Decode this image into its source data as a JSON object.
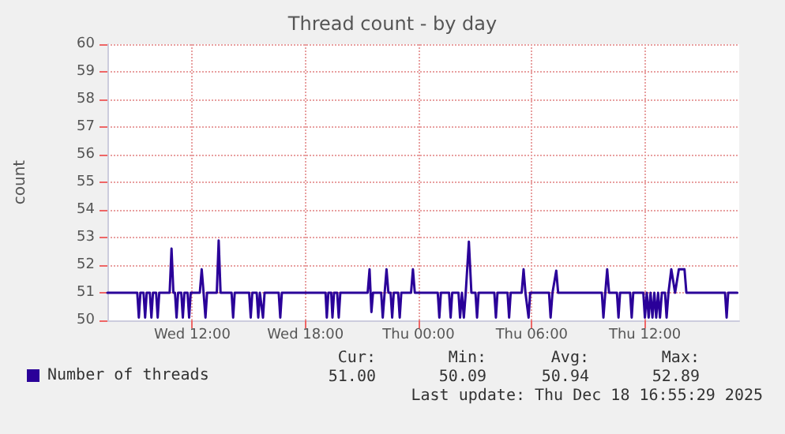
{
  "chart_data": {
    "type": "line",
    "title": "Thread count - by day",
    "ylabel": "count",
    "xlim": [
      "2025-12-17T07:30",
      "2025-12-18T17:00"
    ],
    "xticks": [
      {
        "value": "2025-12-17T12:00",
        "label": "Wed 12:00"
      },
      {
        "value": "2025-12-17T18:00",
        "label": "Wed 18:00"
      },
      {
        "value": "2025-12-18T00:00",
        "label": "Thu 00:00"
      },
      {
        "value": "2025-12-18T06:00",
        "label": "Thu 06:00"
      },
      {
        "value": "2025-12-18T12:00",
        "label": "Thu 12:00"
      }
    ],
    "ylim": [
      50,
      60
    ],
    "yticks": [
      50,
      51,
      52,
      53,
      54,
      55,
      56,
      57,
      58,
      59,
      60
    ],
    "grid": true,
    "legend": "bottom left",
    "marker": "none",
    "line_style": "solid",
    "annotations": [
      "Cur:",
      "Min:",
      "Avg:",
      "Max:",
      "51.00",
      "50.09",
      "50.94",
      "52.89",
      "Last update: Thu Dec 18 16:55:29 2025"
    ],
    "series": [
      {
        "name": "Number of threads",
        "color": "#2a0099",
        "x": [
          "2025-12-17T07:30",
          "2025-12-17T09:05",
          "2025-12-17T09:10",
          "2025-12-17T09:15",
          "2025-12-17T09:25",
          "2025-12-17T09:30",
          "2025-12-17T09:35",
          "2025-12-17T09:45",
          "2025-12-17T09:50",
          "2025-12-17T09:55",
          "2025-12-17T10:05",
          "2025-12-17T10:10",
          "2025-12-17T10:15",
          "2025-12-17T10:48",
          "2025-12-17T10:54",
          "2025-12-17T11:00",
          "2025-12-17T11:05",
          "2025-12-17T11:10",
          "2025-12-17T11:15",
          "2025-12-17T11:25",
          "2025-12-17T11:30",
          "2025-12-17T11:35",
          "2025-12-17T11:45",
          "2025-12-17T11:50",
          "2025-12-17T11:55",
          "2025-12-17T12:24",
          "2025-12-17T12:30",
          "2025-12-17T12:36",
          "2025-12-17T12:42",
          "2025-12-17T12:47",
          "2025-12-17T13:18",
          "2025-12-17T13:24",
          "2025-12-17T13:30",
          "2025-12-17T14:05",
          "2025-12-17T14:10",
          "2025-12-17T14:15",
          "2025-12-17T15:01",
          "2025-12-17T15:06",
          "2025-12-17T15:11",
          "2025-12-17T15:25",
          "2025-12-17T15:30",
          "2025-12-17T15:35",
          "2025-12-17T15:45",
          "2025-12-17T15:50",
          "2025-12-17T16:35",
          "2025-12-17T16:40",
          "2025-12-17T16:45",
          "2025-12-17T19:04",
          "2025-12-17T19:08",
          "2025-12-17T19:13",
          "2025-12-17T19:22",
          "2025-12-17T19:26",
          "2025-12-17T19:31",
          "2025-12-17T19:41",
          "2025-12-17T19:46",
          "2025-12-17T19:51",
          "2025-12-17T21:18",
          "2025-12-17T21:24",
          "2025-12-17T21:30",
          "2025-12-17T21:35",
          "2025-12-17T22:01",
          "2025-12-17T22:06",
          "2025-12-17T22:12",
          "2025-12-17T22:18",
          "2025-12-17T22:24",
          "2025-12-17T22:31",
          "2025-12-17T22:36",
          "2025-12-17T22:41",
          "2025-12-17T22:55",
          "2025-12-17T23:00",
          "2025-12-17T23:05",
          "2025-12-17T23:36",
          "2025-12-17T23:42",
          "2025-12-17T23:48",
          "2025-12-18T01:01",
          "2025-12-18T01:06",
          "2025-12-18T01:11",
          "2025-12-18T01:37",
          "2025-12-18T01:42",
          "2025-12-18T01:47",
          "2025-12-18T02:07",
          "2025-12-18T02:12",
          "2025-12-18T02:18",
          "2025-12-18T02:24",
          "2025-12-18T02:30",
          "2025-12-18T02:40",
          "2025-12-18T02:48",
          "2025-12-18T03:01",
          "2025-12-18T03:06",
          "2025-12-18T03:11",
          "2025-12-18T04:01",
          "2025-12-18T04:06",
          "2025-12-18T04:11",
          "2025-12-18T04:43",
          "2025-12-18T04:48",
          "2025-12-18T04:53",
          "2025-12-18T05:28",
          "2025-12-18T05:34",
          "2025-12-18T05:40",
          "2025-12-18T05:50",
          "2025-12-18T05:55",
          "2025-12-18T06:55",
          "2025-12-18T07:00",
          "2025-12-18T07:06",
          "2025-12-18T07:18",
          "2025-12-18T07:24",
          "2025-12-18T09:43",
          "2025-12-18T09:48",
          "2025-12-18T09:54",
          "2025-12-18T10:00",
          "2025-12-18T10:06",
          "2025-12-18T10:31",
          "2025-12-18T10:36",
          "2025-12-18T10:41",
          "2025-12-18T11:13",
          "2025-12-18T11:18",
          "2025-12-18T11:23",
          "2025-12-18T11:55",
          "2025-12-18T12:00",
          "2025-12-18T12:06",
          "2025-12-18T12:12",
          "2025-12-18T12:18",
          "2025-12-18T12:24",
          "2025-12-18T12:30",
          "2025-12-18T12:36",
          "2025-12-18T12:42",
          "2025-12-18T12:48",
          "2025-12-18T12:54",
          "2025-12-18T13:04",
          "2025-12-18T13:09",
          "2025-12-18T13:15",
          "2025-12-18T13:24",
          "2025-12-18T13:36",
          "2025-12-18T13:48",
          "2025-12-18T14:06",
          "2025-12-18T14:12",
          "2025-12-18T16:15",
          "2025-12-18T16:20",
          "2025-12-18T16:25",
          "2025-12-18T16:54"
        ],
        "values": [
          51,
          51,
          50.1,
          51,
          51,
          50.1,
          51,
          51,
          50.1,
          51,
          51,
          50.1,
          51,
          51,
          52.6,
          51,
          51,
          50.1,
          51,
          51,
          50.1,
          51,
          51,
          50.1,
          51,
          51,
          51.85,
          51,
          50.1,
          51,
          51,
          52.89,
          51,
          51,
          50.1,
          51,
          51,
          50.1,
          51,
          51,
          50.1,
          51,
          50.1,
          51,
          51,
          50.1,
          51,
          51,
          50.1,
          51,
          51,
          50.1,
          51,
          51,
          50.1,
          51,
          51,
          51.85,
          50.3,
          51,
          51,
          50.1,
          51,
          51.85,
          51,
          51,
          50.1,
          51,
          51,
          50.1,
          51,
          51,
          51.85,
          51,
          51,
          50.1,
          51,
          51,
          50.1,
          51,
          51,
          50.1,
          51,
          50.1,
          51,
          52.85,
          51,
          51,
          50.1,
          51,
          51,
          50.1,
          51,
          51,
          50.1,
          51,
          51,
          51.85,
          51,
          50.1,
          51,
          51,
          50.1,
          51,
          51.8,
          51,
          51,
          50.1,
          51,
          51.85,
          51,
          51,
          50.1,
          51,
          51,
          50.1,
          51,
          51,
          50.1,
          51,
          50.1,
          51,
          50.1,
          51,
          50.1,
          51,
          50.1,
          51,
          51,
          50.1,
          51,
          51.85,
          51,
          51.85,
          51.85,
          51,
          51,
          50.1,
          51,
          51
        ]
      }
    ]
  }
}
